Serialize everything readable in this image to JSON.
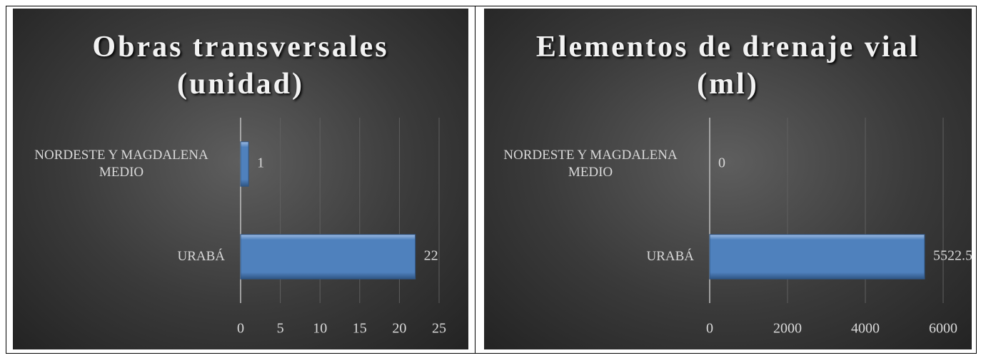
{
  "chart_data": [
    {
      "type": "bar",
      "orientation": "horizontal",
      "title": "Obras transversales (unidad)",
      "categories": [
        "NORDESTE Y MAGDALENA MEDIO",
        "URABÁ"
      ],
      "values": [
        1,
        22
      ],
      "color": "#4f81bd",
      "xlim": [
        0,
        25
      ],
      "xticks": [
        0,
        5,
        10,
        15,
        20,
        25
      ],
      "grid": true
    },
    {
      "type": "bar",
      "orientation": "horizontal",
      "title": "Elementos de drenaje vial (ml)",
      "categories": [
        "NORDESTE Y MAGDALENA MEDIO",
        "URABÁ"
      ],
      "values": [
        0,
        5522.5
      ],
      "color": "#4f81bd",
      "xlim": [
        0,
        6000
      ],
      "xticks": [
        0,
        2000,
        4000,
        6000
      ],
      "grid": true
    }
  ]
}
